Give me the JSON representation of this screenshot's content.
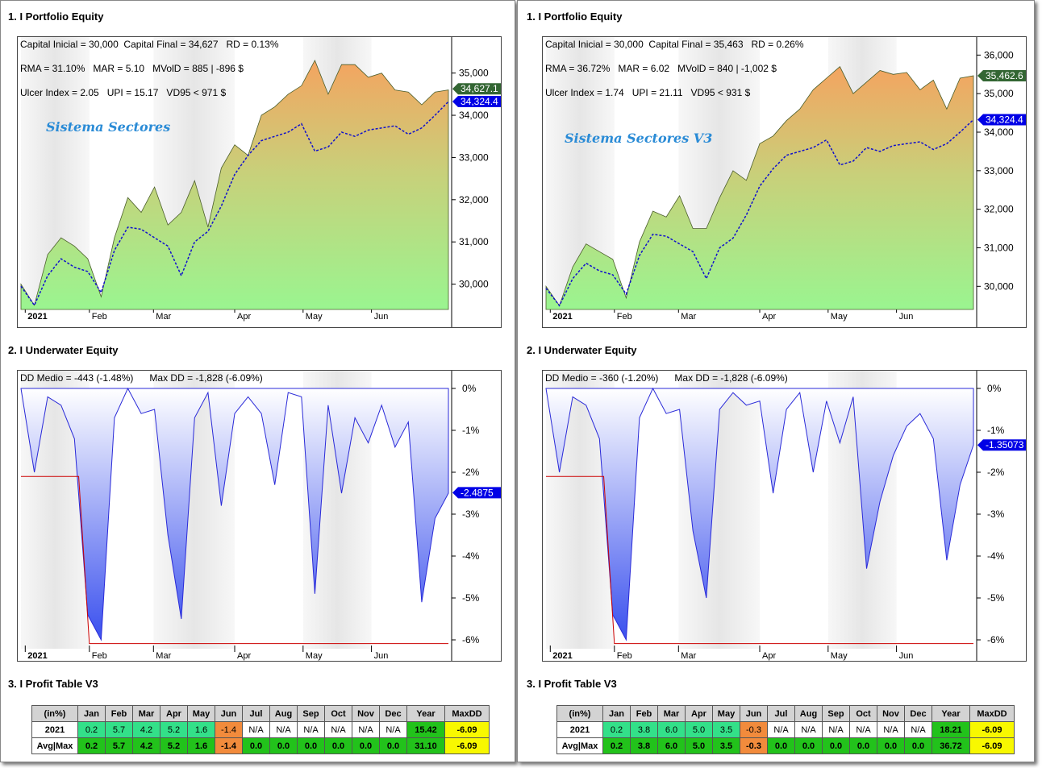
{
  "colors": {
    "pos_light": "#33e089",
    "pos_dark": "#22c21b",
    "neg": "#f28b3c",
    "na": "#ffffff",
    "year_pos": "#22c21b",
    "maxdd": "#f8f800",
    "marker_blue": "#0000e6",
    "marker_green": "#336633"
  },
  "months_axis": [
    "2021",
    "Feb",
    "Mar",
    "Apr",
    "May",
    "Jun"
  ],
  "panels": [
    {
      "equity_title": "1. I Portfolio Equity",
      "underwater_title": "2. I Underwater Equity",
      "profit_title": "3. I Profit Table V3",
      "system_name": "Sistema Sectores",
      "stats": {
        "line1": "Capital Inicial = 30,000  Capital Final = 34,627   RD = 0.13%",
        "line2": "RMA = 31.10%   MAR = 5.10   MVolD = 885 | -896 $",
        "line3": "Ulcer Index = 2.05   UPI = 15.17   VD95 < 971 $"
      },
      "equity_axis": [
        "35,000",
        "34,000",
        "33,000",
        "32,000",
        "31,000",
        "30,000"
      ],
      "equity_marker_green": "34,627.1",
      "equity_marker_blue": "34,324.4",
      "dd_stats": "DD Medio = -443 (-1.48%)      Max DD = -1,828 (-6.09%)",
      "dd_axis": [
        "0%",
        "-1%",
        "-2%",
        "-3%",
        "-4%",
        "-5%",
        "-6%"
      ],
      "dd_marker": "-2.4875",
      "chart_data": {
        "type": "area",
        "x": [
          "2021",
          "Feb",
          "Mar",
          "Apr",
          "May",
          "Jun"
        ],
        "equity": [
          30000,
          29500,
          30700,
          31100,
          30900,
          30600,
          29700,
          31100,
          32050,
          31700,
          32300,
          31400,
          31700,
          32450,
          31350,
          32750,
          33300,
          33050,
          34000,
          34200,
          34500,
          34700,
          35300,
          34500,
          35200,
          35200,
          34900,
          35000,
          34600,
          34550,
          34250,
          34550,
          34600
        ],
        "benchmark": [
          29950,
          29500,
          30200,
          30600,
          30400,
          30300,
          29800,
          30800,
          31350,
          31300,
          31100,
          30900,
          30200,
          31000,
          31250,
          31850,
          32600,
          33050,
          33400,
          33500,
          33600,
          33800,
          33150,
          33250,
          33600,
          33500,
          33650,
          33700,
          33750,
          33550,
          33700,
          34000,
          34324
        ],
        "ylim": [
          29400,
          35700
        ],
        "drawdown": [
          0,
          -2.0,
          -0.2,
          -0.4,
          -1.2,
          -5.4,
          -6.0,
          -0.7,
          0,
          -0.6,
          -0.5,
          -3.5,
          -5.5,
          -0.7,
          -0.1,
          -2.8,
          -0.6,
          -0.2,
          -0.6,
          -2.3,
          -0.1,
          -0.2,
          -4.9,
          -0.4,
          -2.5,
          -0.7,
          -1.3,
          -0.4,
          -1.4,
          -0.8,
          -5.1,
          -3.1,
          -2.5
        ],
        "max_dd_line": [
          -2.1,
          -2.1,
          -6.09,
          -6.09
        ]
      },
      "profit_table": {
        "headers": [
          "(in%)",
          "Jan",
          "Feb",
          "Mar",
          "Apr",
          "May",
          "Jun",
          "Jul",
          "Aug",
          "Sep",
          "Oct",
          "Nov",
          "Dec",
          "Year",
          "MaxDD"
        ],
        "rows": [
          {
            "label": "2021",
            "values": [
              "0.2",
              "5.7",
              "4.2",
              "5.2",
              "1.6",
              "-1.4",
              "N/A",
              "N/A",
              "N/A",
              "N/A",
              "N/A",
              "N/A"
            ],
            "year": "15.42",
            "maxdd": "-6.09"
          },
          {
            "label": "Avg|Max",
            "values": [
              "0.2",
              "5.7",
              "4.2",
              "5.2",
              "1.6",
              "-1.4",
              "0.0",
              "0.0",
              "0.0",
              "0.0",
              "0.0",
              "0.0"
            ],
            "year": "31.10",
            "maxdd": "-6.09"
          }
        ]
      }
    },
    {
      "equity_title": "1. I Portfolio Equity",
      "underwater_title": "2. I Underwater Equity",
      "profit_title": "3. I Profit Table V3",
      "system_name": "Sistema Sectores V3",
      "stats": {
        "line1": "Capital Inicial = 30,000  Capital Final = 35,463   RD = 0.26%",
        "line2": "RMA = 36.72%   MAR = 6.02   MVolD = 840 | -1,002 $",
        "line3": "Ulcer Index = 1.74   UPI = 21.11   VD95 < 931 $"
      },
      "equity_axis": [
        "36,000",
        "35,000",
        "34,000",
        "33,000",
        "32,000",
        "31,000",
        "30,000"
      ],
      "equity_marker_green": "35,462.6",
      "equity_marker_blue": "34,324.4",
      "dd_stats": "DD Medio = -360 (-1.20%)      Max DD = -1,828 (-6.09%)",
      "dd_axis": [
        "0%",
        "-1%",
        "-2%",
        "-3%",
        "-4%",
        "-5%",
        "-6%"
      ],
      "dd_marker": "-1.35073",
      "chart_data": {
        "type": "area",
        "x": [
          "2021",
          "Feb",
          "Mar",
          "Apr",
          "May",
          "Jun"
        ],
        "equity": [
          30000,
          29500,
          30500,
          31100,
          30900,
          30700,
          29700,
          31150,
          31950,
          31800,
          32350,
          31500,
          31500,
          32300,
          33000,
          32750,
          33700,
          33900,
          34300,
          34600,
          35100,
          35400,
          35700,
          35000,
          35300,
          35600,
          35500,
          35550,
          35100,
          35350,
          34600,
          35400,
          35463
        ],
        "benchmark": [
          29950,
          29500,
          30200,
          30600,
          30400,
          30300,
          29800,
          30800,
          31350,
          31300,
          31100,
          30900,
          30200,
          31000,
          31250,
          31850,
          32600,
          33050,
          33400,
          33500,
          33600,
          33800,
          33150,
          33250,
          33600,
          33500,
          33650,
          33700,
          33750,
          33550,
          33700,
          34000,
          34324
        ],
        "ylim": [
          29400,
          36300
        ],
        "drawdown": [
          0,
          -2.0,
          -0.2,
          -0.4,
          -1.2,
          -5.4,
          -6.0,
          -0.7,
          0,
          -0.6,
          -0.5,
          -3.4,
          -5.0,
          -0.5,
          -0.1,
          -0.4,
          -0.3,
          -2.5,
          -0.5,
          -0.1,
          -2.0,
          -0.3,
          -1.3,
          -0.2,
          -4.3,
          -2.7,
          -1.6,
          -0.9,
          -0.6,
          -1.2,
          -4.1,
          -2.3,
          -1.35
        ],
        "max_dd_line": [
          -2.1,
          -2.1,
          -6.09,
          -6.09
        ]
      },
      "profit_table": {
        "headers": [
          "(in%)",
          "Jan",
          "Feb",
          "Mar",
          "Apr",
          "May",
          "Jun",
          "Jul",
          "Aug",
          "Sep",
          "Oct",
          "Nov",
          "Dec",
          "Year",
          "MaxDD"
        ],
        "rows": [
          {
            "label": "2021",
            "values": [
              "0.2",
              "3.8",
              "6.0",
              "5.0",
              "3.5",
              "-0.3",
              "N/A",
              "N/A",
              "N/A",
              "N/A",
              "N/A",
              "N/A"
            ],
            "year": "18.21",
            "maxdd": "-6.09"
          },
          {
            "label": "Avg|Max",
            "values": [
              "0.2",
              "3.8",
              "6.0",
              "5.0",
              "3.5",
              "-0.3",
              "0.0",
              "0.0",
              "0.0",
              "0.0",
              "0.0",
              "0.0"
            ],
            "year": "36.72",
            "maxdd": "-6.09"
          }
        ]
      }
    }
  ]
}
